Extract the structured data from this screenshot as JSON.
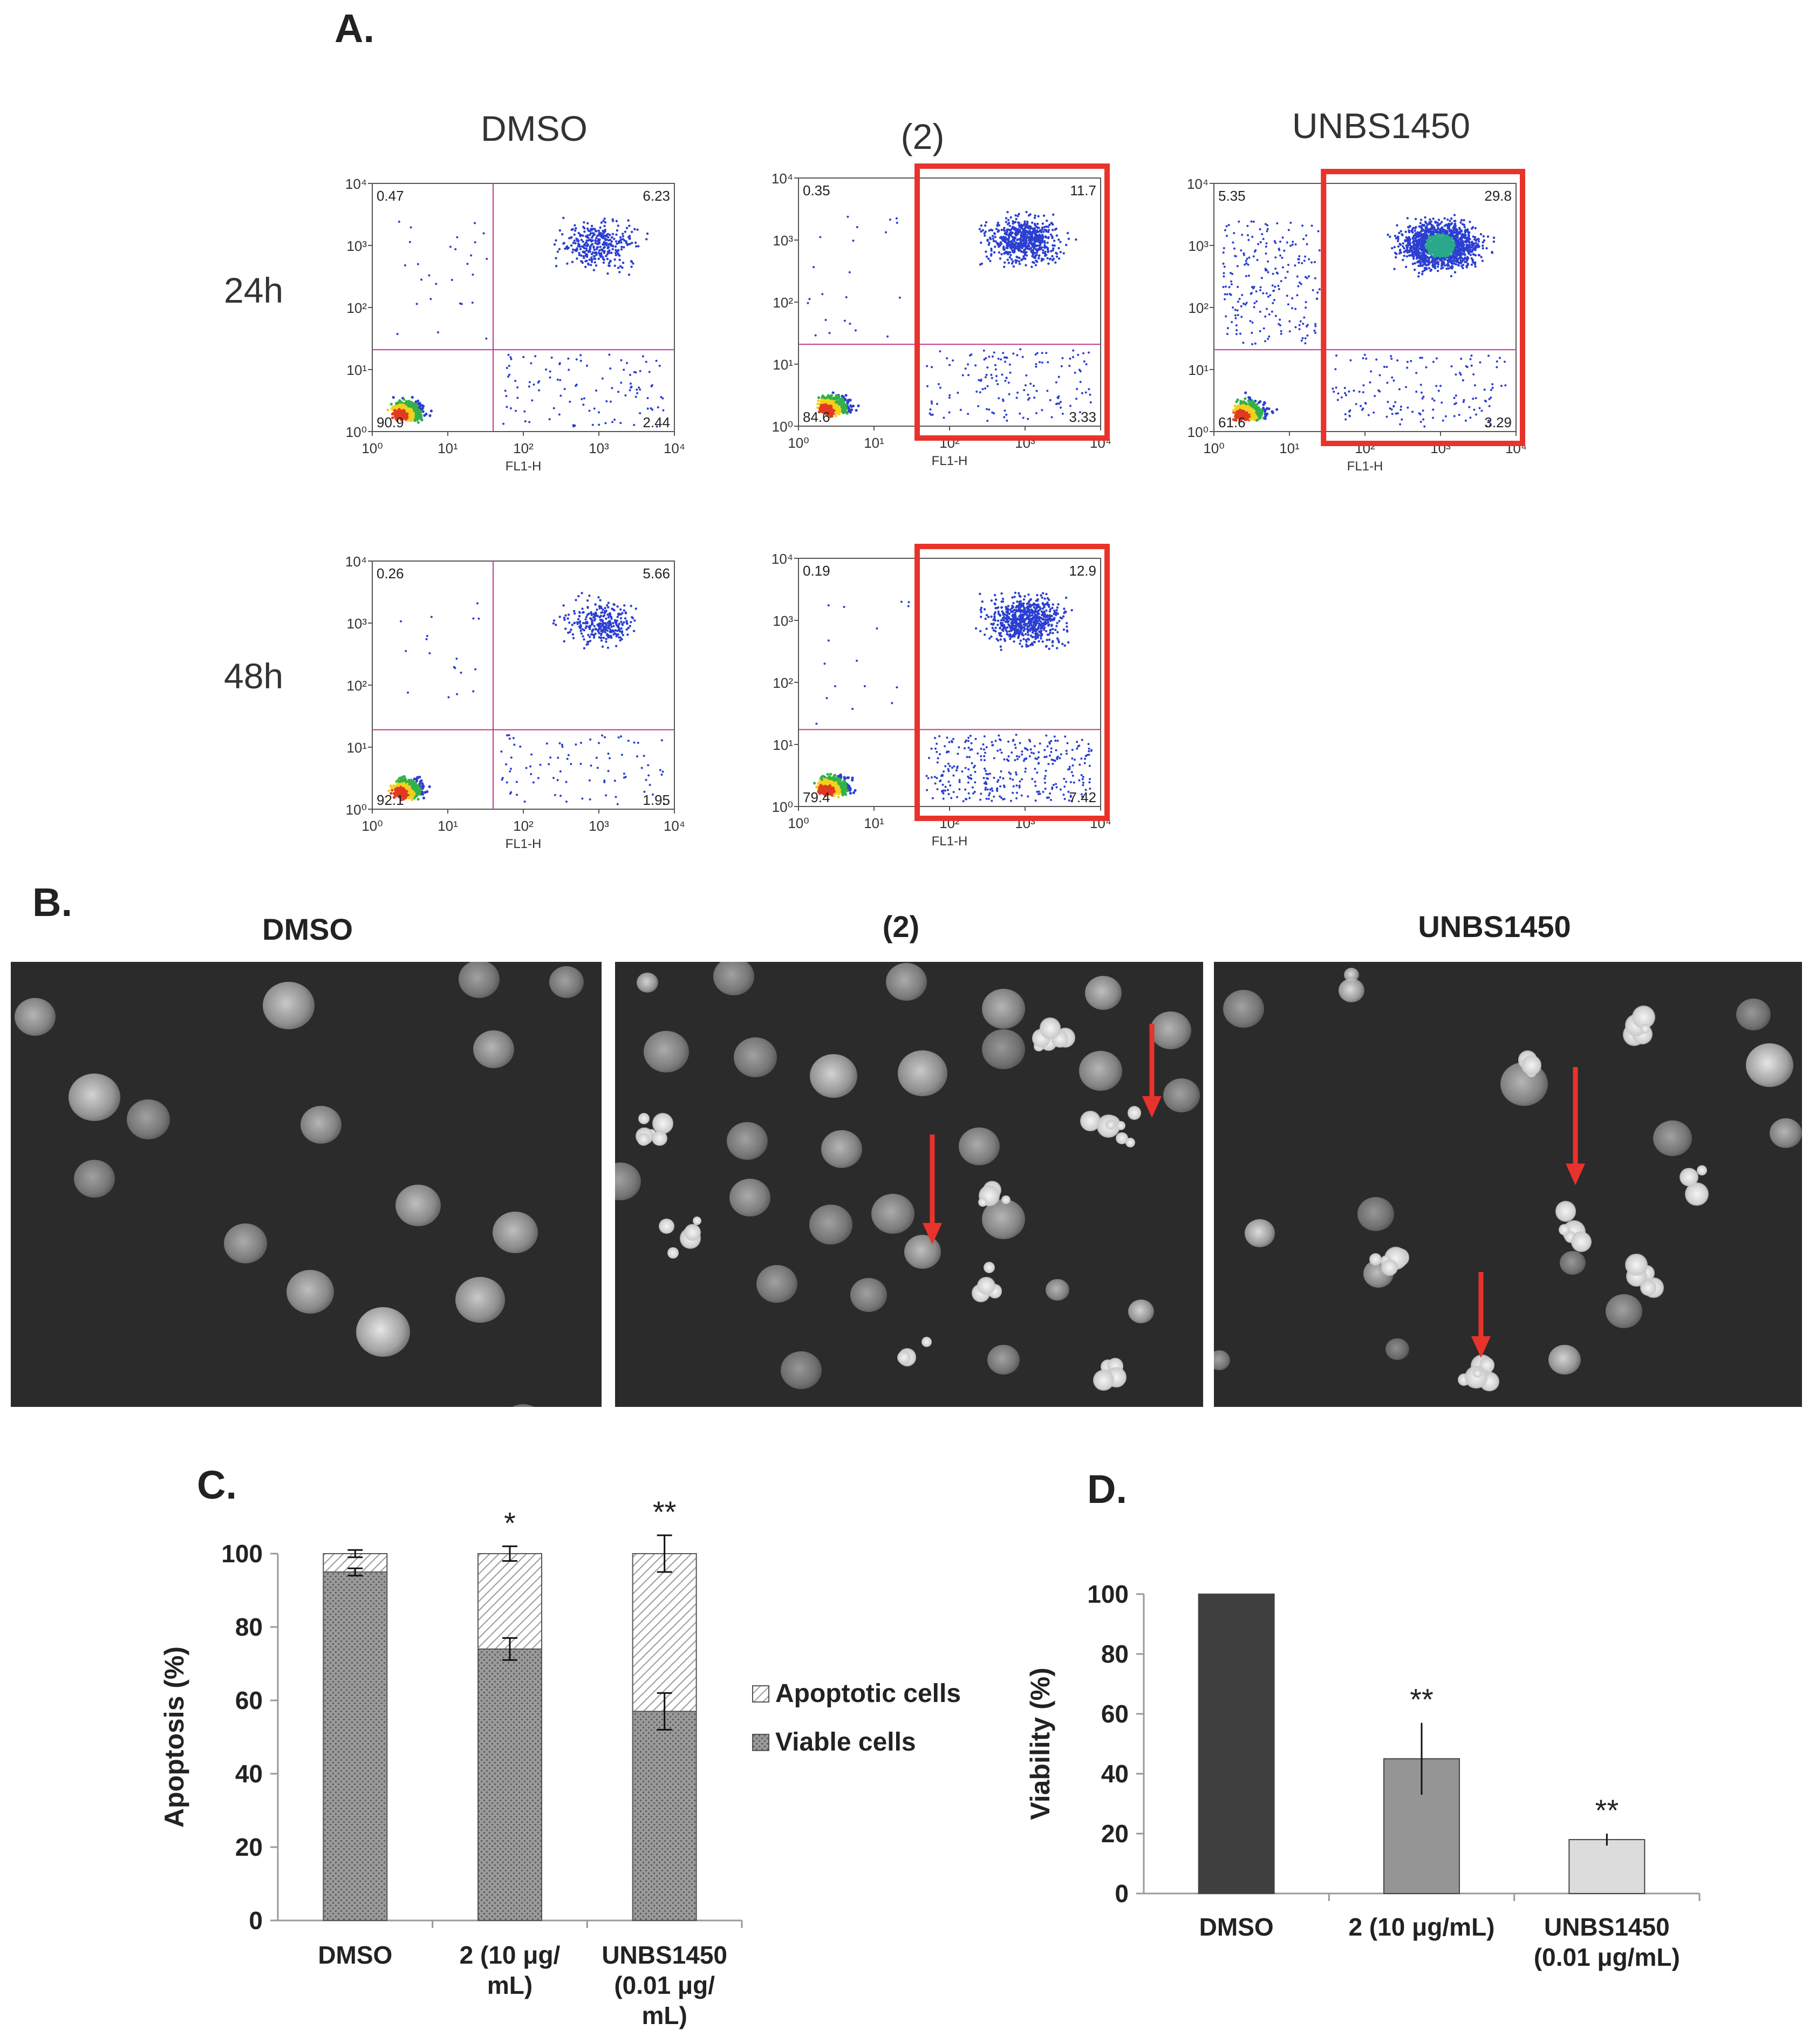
{
  "panel_a": {
    "label": "A.",
    "column_titles": [
      "DMSO",
      "(2)",
      "UNBS1450"
    ],
    "row_titles": [
      "24h",
      "48h"
    ],
    "axis_label": "FL1-H",
    "axis_ticks": [
      "10⁰",
      "10¹",
      "10²",
      "10³",
      "10⁴"
    ],
    "highlight_color": "#e8332c",
    "gate_color": "#c0398f",
    "plots": [
      {
        "name": "DMSO 24h",
        "q_ul": "0.47",
        "q_ur": "6.23",
        "q_ll": "90.9",
        "q_lr": "2.44",
        "highlighted": false
      },
      {
        "name": "(2) 24h",
        "q_ul": "0.35",
        "q_ur": "11.7",
        "q_ll": "84.6",
        "q_lr": "3.33",
        "highlighted": true
      },
      {
        "name": "UNBS1450 24h",
        "q_ul": "5.35",
        "q_ur": "29.8",
        "q_ll": "61.6",
        "q_lr": "3.29",
        "highlighted": true
      },
      {
        "name": "DMSO 48h",
        "q_ul": "0.26",
        "q_ur": "5.66",
        "q_ll": "92.1",
        "q_lr": "1.95",
        "highlighted": false
      },
      {
        "name": "(2) 48h",
        "q_ul": "0.19",
        "q_ur": "12.9",
        "q_ll": "79.4",
        "q_lr": "7.42",
        "highlighted": true
      }
    ]
  },
  "panel_b": {
    "label": "B.",
    "column_titles": [
      "DMSO",
      "(2)",
      "UNBS1450"
    ],
    "arrow_color": "#e8332c"
  },
  "panel_c_label": "C.",
  "panel_d_label": "D.",
  "chart_data": [
    {
      "type": "bar",
      "stacked": true,
      "title": "",
      "ylabel": "Apoptosis (%)",
      "xlabel": "",
      "ylim": [
        0,
        100
      ],
      "yticks": [
        0,
        20,
        40,
        60,
        80,
        100
      ],
      "categories": [
        [
          "DMSO"
        ],
        [
          "2 (10 μg/",
          "mL)"
        ],
        [
          "UNBS1450",
          "(0.01 μg/",
          "mL)"
        ]
      ],
      "series": [
        {
          "name": "Viable cells",
          "values": [
            95,
            74,
            57
          ],
          "errors": [
            1,
            3,
            5
          ]
        },
        {
          "name": "Apoptotic cells",
          "values": [
            5,
            26,
            43
          ],
          "errors": [
            1,
            2,
            5
          ]
        }
      ],
      "significance": [
        "",
        "*",
        "**"
      ],
      "legend": [
        "Apoptotic cells",
        "Viable cells"
      ],
      "legend_position": "right"
    },
    {
      "type": "bar",
      "title": "",
      "ylabel": "Viability (%)",
      "xlabel": "",
      "ylim": [
        0,
        100
      ],
      "yticks": [
        0,
        20,
        40,
        60,
        80,
        100
      ],
      "categories": [
        [
          "DMSO"
        ],
        [
          "2 (10 μg/mL)"
        ],
        [
          "UNBS1450",
          "(0.01 μg/mL)"
        ]
      ],
      "values": [
        100,
        45,
        18
      ],
      "errors": [
        0,
        12,
        2
      ],
      "colors": [
        "#3f3f3f",
        "#959595",
        "#dcdcdc"
      ],
      "significance": [
        "",
        "**",
        "**"
      ]
    }
  ]
}
